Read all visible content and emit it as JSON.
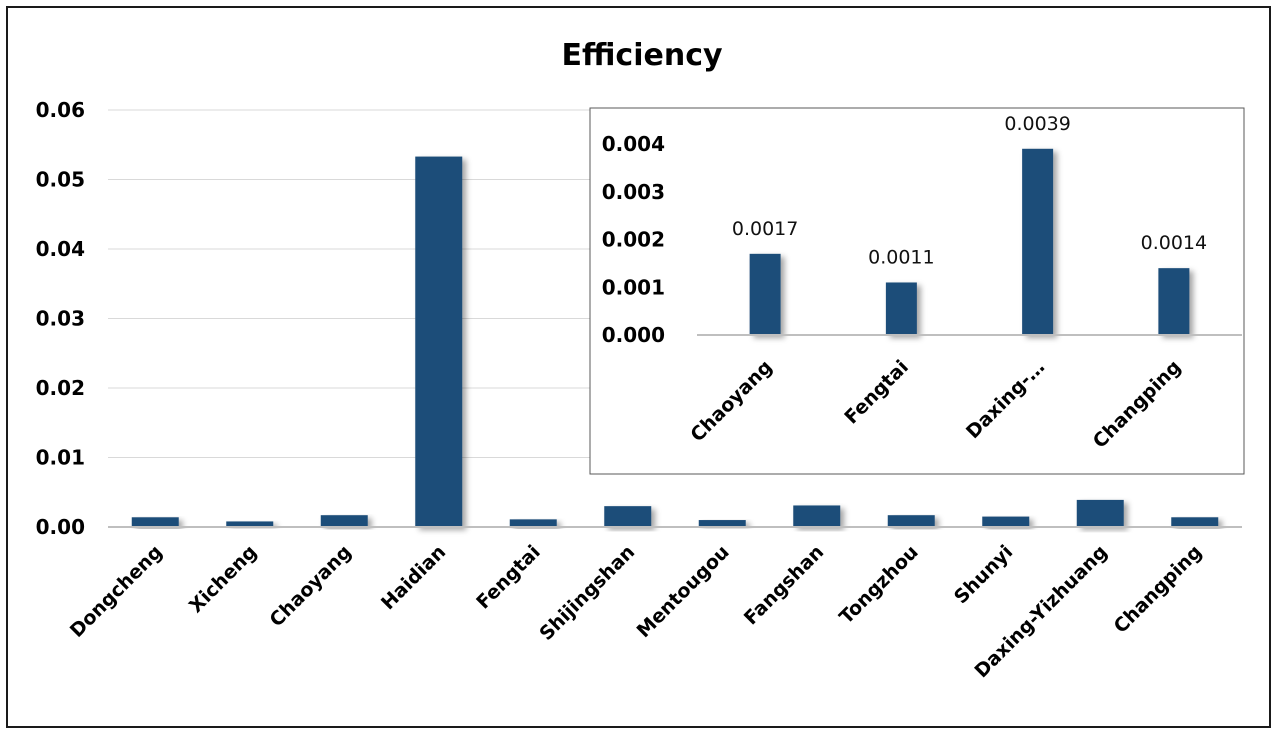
{
  "chart_data": [
    {
      "type": "bar",
      "title": "Efficiency",
      "xlabel": "",
      "ylabel": "",
      "ylim": [
        0,
        0.06
      ],
      "yticks": [
        "0.00",
        "0.01",
        "0.02",
        "0.03",
        "0.04",
        "0.05",
        "0.06"
      ],
      "ytick_values": [
        0,
        0.01,
        0.02,
        0.03,
        0.04,
        0.05,
        0.06
      ],
      "categories": [
        "Dongcheng",
        "Xicheng",
        "Chaoyang",
        "Haidian",
        "Fengtai",
        "Shijingshan",
        "Mentougou",
        "Fangshan",
        "Tongzhou",
        "Shunyi",
        "Daxing-Yizhuang",
        "Changping"
      ],
      "values": [
        0.0014,
        0.0008,
        0.0017,
        0.0533,
        0.0011,
        0.003,
        0.001,
        0.0031,
        0.0017,
        0.0015,
        0.0039,
        0.0014
      ],
      "color": "#1f4e79",
      "grid": true,
      "legend": "none"
    },
    {
      "type": "bar",
      "title": "",
      "ylim": [
        0,
        0.004
      ],
      "yticks": [
        "0.000",
        "0.001",
        "0.002",
        "0.003",
        "0.004"
      ],
      "ytick_values": [
        0,
        0.001,
        0.002,
        0.003,
        0.004
      ],
      "categories": [
        "Chaoyang",
        "Fengtai",
        "Daxing-…",
        "Changping"
      ],
      "values": [
        0.0017,
        0.0011,
        0.0039,
        0.0014
      ],
      "data_labels": [
        "0.0017",
        "0.0011",
        "0.0039",
        "0.0014"
      ],
      "color": "#1f4e79",
      "grid": false,
      "legend": "none",
      "placement": "top-right inset"
    }
  ]
}
